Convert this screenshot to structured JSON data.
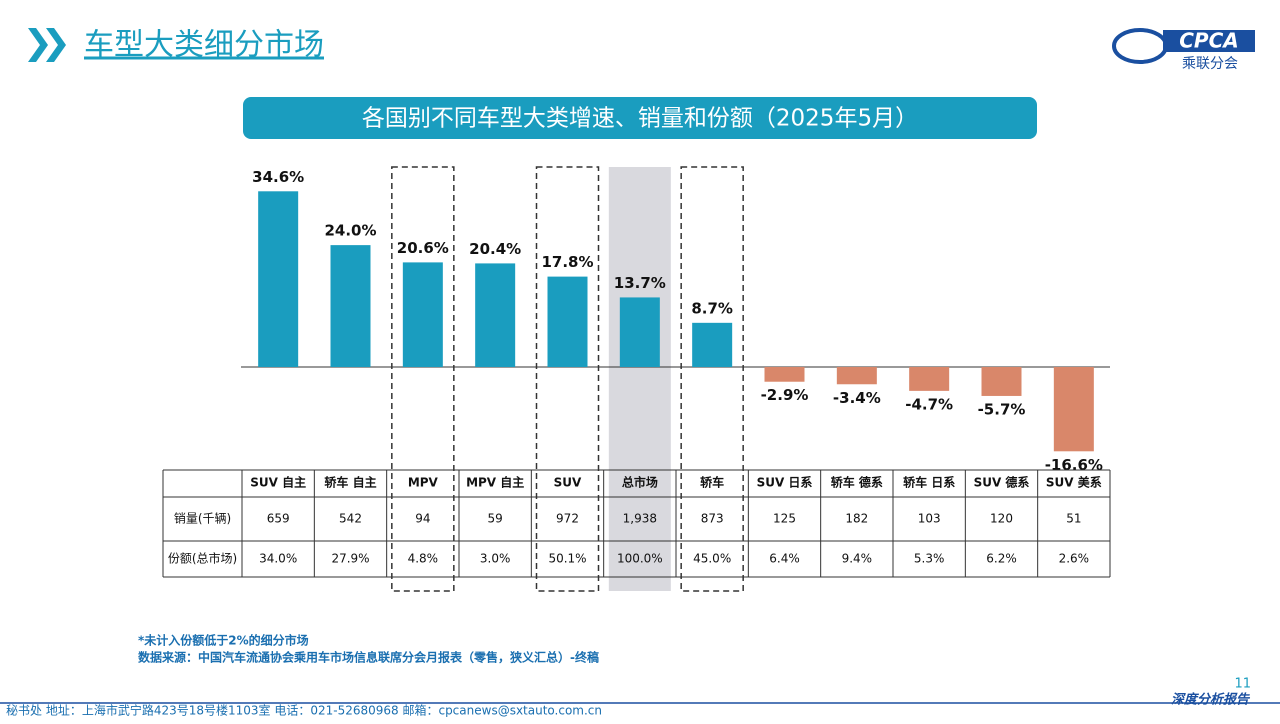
{
  "header": {
    "title": "车型大类细分市场",
    "logo": "CPCA",
    "logo_sub": "乘联分会"
  },
  "chart_data": {
    "type": "bar",
    "title": "各国别不同车型大类增速、销量和份额（2025年5月）",
    "categories": [
      "SUV 自主",
      "轿车 自主",
      "MPV",
      "MPV 自主",
      "SUV",
      "总市场",
      "轿车",
      "SUV 日系",
      "轿车 德系",
      "轿车 日系",
      "SUV 德系",
      "SUV 美系"
    ],
    "values": [
      34.6,
      24.0,
      20.6,
      20.4,
      17.8,
      13.7,
      8.7,
      -2.9,
      -3.4,
      -4.7,
      -5.7,
      -16.6
    ],
    "value_labels": [
      "34.6%",
      "24.0%",
      "20.6%",
      "20.4%",
      "17.8%",
      "13.7%",
      "8.7%",
      "-2.9%",
      "-3.4%",
      "-4.7%",
      "-5.7%",
      "-16.6%"
    ],
    "color_positive": "#1a9dbf",
    "color_negative": "#d9876a"
  },
  "table": {
    "rows": [
      {
        "label": "销量(千辆)",
        "cells": [
          "659",
          "542",
          "94",
          "59",
          "972",
          "1,938",
          "873",
          "125",
          "182",
          "103",
          "120",
          "51"
        ]
      },
      {
        "label": "份额(总市场)",
        "cells": [
          "34.0%",
          "27.9%",
          "4.8%",
          "3.0%",
          "50.1%",
          "100.0%",
          "45.0%",
          "6.4%",
          "9.4%",
          "5.3%",
          "6.2%",
          "2.6%"
        ]
      }
    ]
  },
  "notes": [
    "*未计入份额低于2%的细分市场",
    "数据来源：中国汽车流通协会乘用车市场信息联席分会月报表（零售，狭义汇总）-终稿"
  ],
  "footer": {
    "address": "秘书处  地址：上海市武宁路423号18号楼1103室  电话：021-52680968  邮箱：cpcanews@sxtauto.com.cn",
    "tag": "深度分析报告",
    "page": "11"
  }
}
